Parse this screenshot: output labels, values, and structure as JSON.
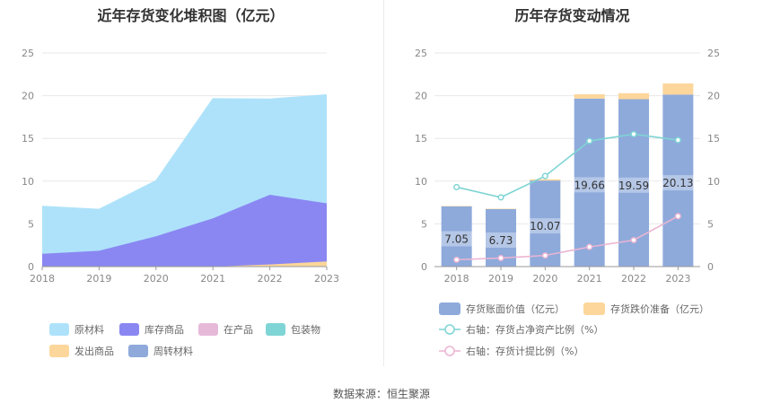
{
  "chart_data": [
    {
      "type": "area",
      "title": "近年存货变化堆积图（亿元）",
      "categories": [
        "2018",
        "2019",
        "2020",
        "2021",
        "2022",
        "2023"
      ],
      "ylim": [
        0,
        25
      ],
      "yticks": [
        0,
        5,
        10,
        15,
        20,
        25
      ],
      "stacked": true,
      "series": [
        {
          "name": "原材料",
          "values": [
            5.55,
            4.85,
            6.5,
            14.0,
            11.2,
            12.7
          ],
          "color": "#aee2fa"
        },
        {
          "name": "库存商品",
          "values": [
            1.5,
            1.85,
            3.55,
            5.65,
            8.15,
            6.8
          ],
          "color": "#8a87f2"
        },
        {
          "name": "在产品",
          "values": [
            0.0,
            0.0,
            0.0,
            0.0,
            0.0,
            0.0
          ],
          "color": "#e6b9d9"
        },
        {
          "name": "包装物",
          "values": [
            0.0,
            0.0,
            0.0,
            0.0,
            0.0,
            0.0
          ],
          "color": "#7fd5d5"
        },
        {
          "name": "发出商品",
          "values": [
            0.0,
            0.0,
            0.0,
            0.0,
            0.25,
            0.6
          ],
          "color": "#fcd69a"
        },
        {
          "name": "周转材料",
          "values": [
            0.0,
            0.0,
            0.0,
            0.0,
            0.0,
            0.0
          ],
          "color": "#8fa9db"
        }
      ],
      "legend_position": "bottom"
    },
    {
      "type": "bar",
      "title": "历年存货变动情况",
      "categories": [
        "2018",
        "2019",
        "2020",
        "2021",
        "2022",
        "2023"
      ],
      "ylim": [
        0,
        25
      ],
      "yticks": [
        0,
        5,
        10,
        15,
        20,
        25
      ],
      "y2lim": [
        0,
        25
      ],
      "y2ticks": [
        0,
        5,
        10,
        15,
        20,
        25
      ],
      "bars": [
        {
          "name": "存货账面价值（亿元）",
          "values": [
            7.05,
            6.73,
            10.07,
            19.66,
            19.59,
            20.13
          ],
          "labels": [
            "7.05",
            "6.73",
            "10.07",
            "19.66",
            "19.59",
            "20.13"
          ],
          "color": "#8eaadb"
        },
        {
          "name": "存货跌价准备（亿元）",
          "values": [
            0.05,
            0.05,
            0.15,
            0.5,
            0.7,
            1.3
          ],
          "color": "#fcd69a"
        }
      ],
      "lines": [
        {
          "name": "右轴：存货占净资产比例（%）",
          "values": [
            9.3,
            8.1,
            10.6,
            14.7,
            15.5,
            14.8
          ],
          "color": "#7fd4d4"
        },
        {
          "name": "右轴：存货计提比例（%）",
          "values": [
            0.8,
            1.0,
            1.3,
            2.3,
            3.1,
            5.9
          ],
          "color": "#eab4d2"
        }
      ],
      "legend_position": "bottom"
    }
  ],
  "footer": "数据来源：恒生聚源"
}
